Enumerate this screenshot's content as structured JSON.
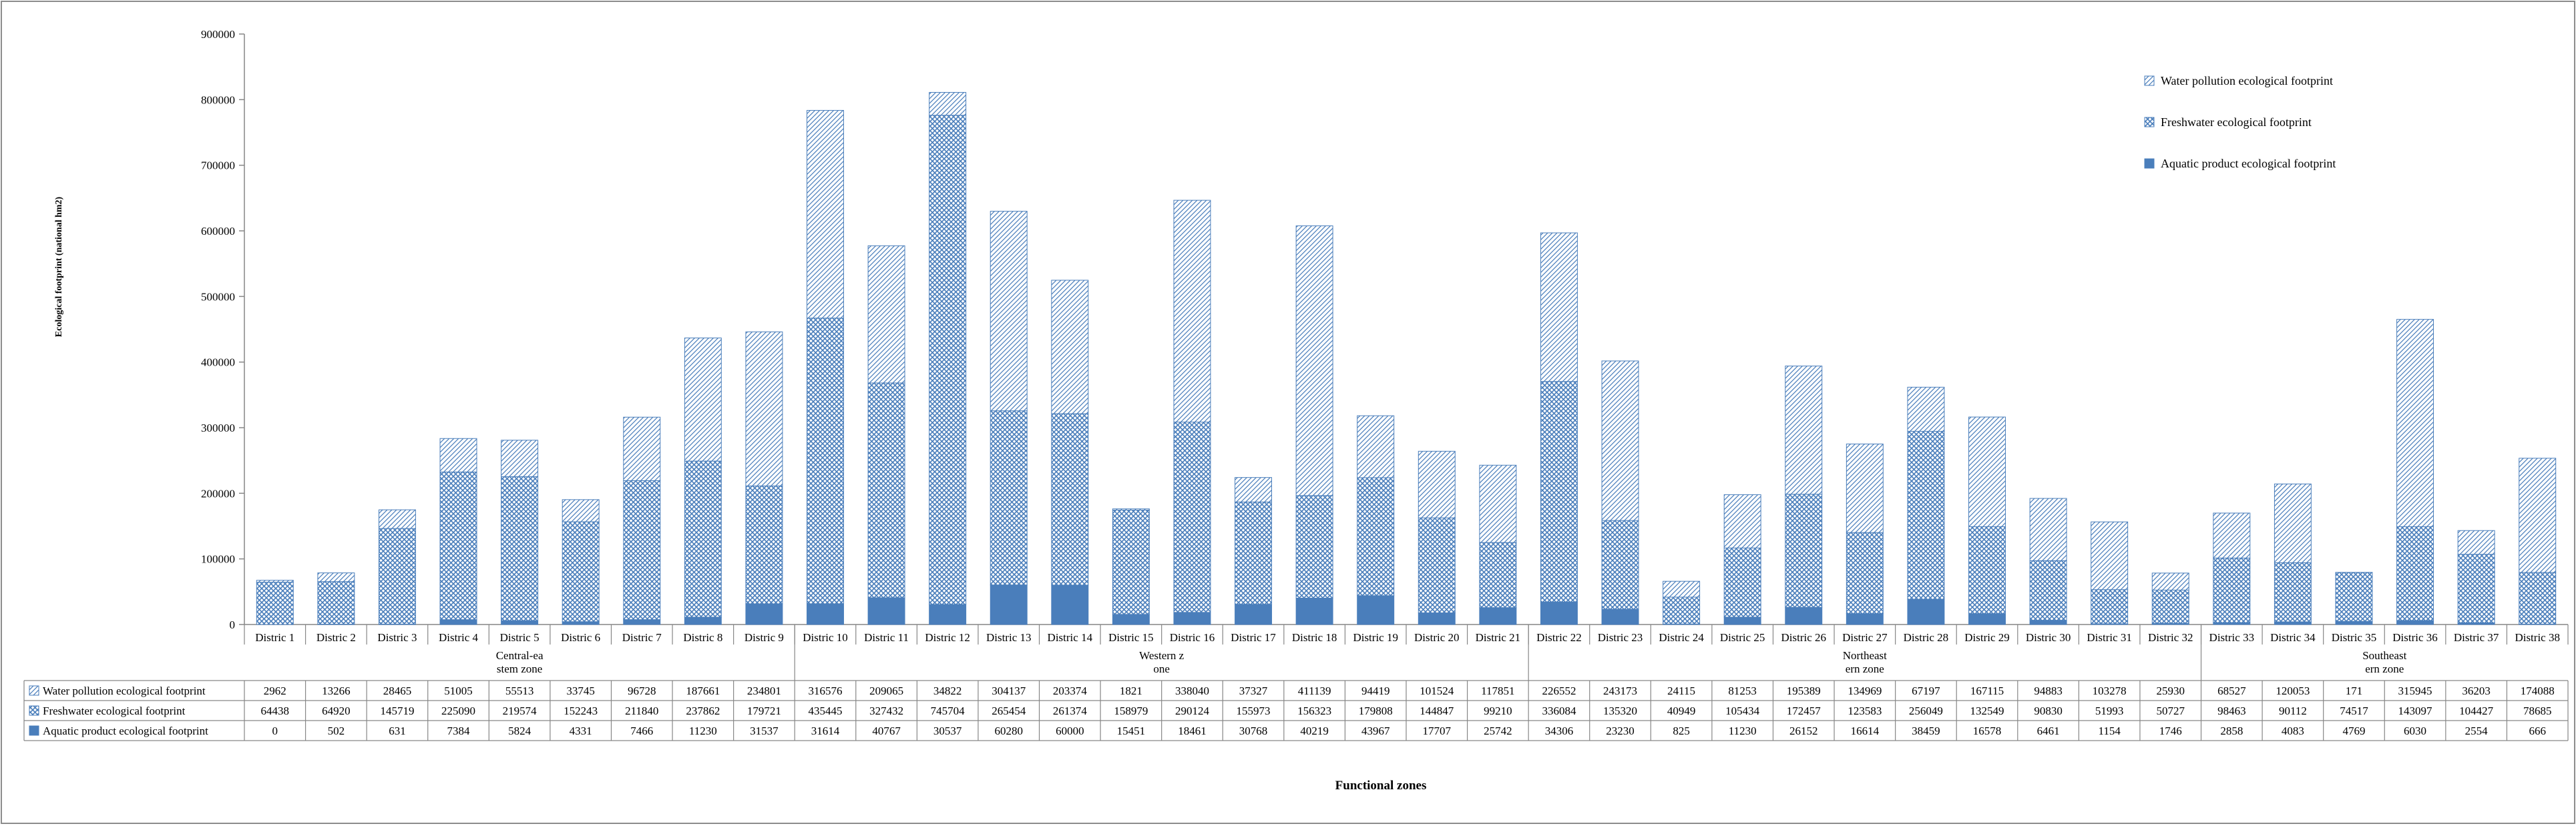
{
  "chart_data": {
    "type": "bar",
    "stacked": true,
    "ylabel": "Ecological footprint (national hm2)",
    "xlabel": "Functional zones",
    "ylim": [
      0,
      900000
    ],
    "yticks": [
      0,
      100000,
      200000,
      300000,
      400000,
      500000,
      600000,
      700000,
      800000,
      900000
    ],
    "grid": false,
    "legend_position": "top-right",
    "categories": [
      "Distric 1",
      "Distric 2",
      "Distric 3",
      "Distric 4",
      "Distric 5",
      "Distric 6",
      "Distric 7",
      "Distric 8",
      "Distric 9",
      "Distric 10",
      "Distric 11",
      "Distric 12",
      "Distric 13",
      "Distric 14",
      "Distric 15",
      "Distric 16",
      "Distric 17",
      "Distric 18",
      "Distric 19",
      "Distric 20",
      "Distric 21",
      "Distric 22",
      "Distric 23",
      "Distric 24",
      "Distric 25",
      "Distric 26",
      "Distric 27",
      "Distric 28",
      "Distric 29",
      "Distric 30",
      "Distric 31",
      "Distric 32",
      "Distric 33",
      "Distric 34",
      "Distric 35",
      "Distric 36",
      "Distric 37",
      "Distric 38"
    ],
    "groups": [
      {
        "label": "Central-ea\nstem zone",
        "start": 0,
        "end": 8
      },
      {
        "label": "Western z\none",
        "start": 9,
        "end": 20
      },
      {
        "label": "Northeast\nern zone",
        "start": 21,
        "end": 31
      },
      {
        "label": "Southeast\nern zone",
        "start": 32,
        "end": 37
      }
    ],
    "series": [
      {
        "name": "Aquatic product ecological footprint",
        "color": "#4a7ebb",
        "pattern": "solid",
        "values": [
          0,
          502,
          631,
          7384,
          5824,
          4331,
          7466,
          11230,
          31537,
          31614,
          40767,
          30537,
          60280,
          60000,
          15451,
          18461,
          30768,
          40219,
          43967,
          17707,
          25742,
          34306,
          23230,
          825,
          11230,
          26152,
          16614,
          38459,
          16578,
          6461,
          1154,
          1746,
          2858,
          4083,
          4769,
          6030,
          2554,
          666
        ]
      },
      {
        "name": "Freshwater ecological footprint",
        "color": "#4a7ebb",
        "pattern": "crosshatch",
        "values": [
          64438,
          64920,
          145719,
          225090,
          219574,
          152243,
          211840,
          237862,
          179721,
          435445,
          327432,
          745704,
          265454,
          261374,
          158979,
          290124,
          155973,
          156323,
          179808,
          144847,
          99210,
          336084,
          135320,
          40949,
          105434,
          172457,
          123583,
          256049,
          132549,
          90830,
          51993,
          50727,
          98463,
          90112,
          74517,
          143097,
          104427,
          78685
        ]
      },
      {
        "name": "Water pollution ecological footprint",
        "color": "#4a7ebb",
        "pattern": "diagonal",
        "values": [
          2962,
          13266,
          28465,
          51005,
          55513,
          33745,
          96728,
          187661,
          234801,
          316576,
          209065,
          34822,
          304137,
          203374,
          1821,
          338040,
          37327,
          411139,
          94419,
          101524,
          117851,
          226552,
          243173,
          24115,
          81253,
          195389,
          134969,
          67197,
          167115,
          94883,
          103278,
          25930,
          68527,
          120053,
          171,
          315945,
          36203,
          174088
        ]
      }
    ]
  }
}
